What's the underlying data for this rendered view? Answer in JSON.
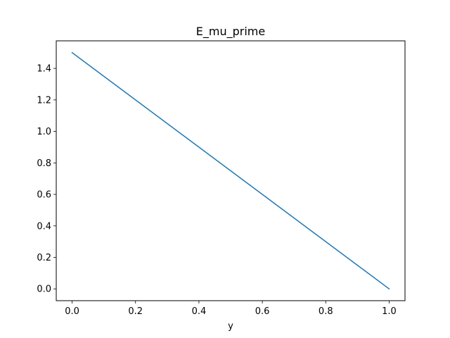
{
  "chart_data": {
    "type": "line",
    "title": "E_mu_prime",
    "xlabel": "y",
    "ylabel": "",
    "xlim": [
      -0.05,
      1.05
    ],
    "ylim": [
      -0.075,
      1.575
    ],
    "grid": false,
    "x_ticks": [
      0.0,
      0.2,
      0.4,
      0.6,
      0.8,
      1.0
    ],
    "x_tick_labels": [
      "0.0",
      "0.2",
      "0.4",
      "0.6",
      "0.8",
      "1.0"
    ],
    "y_ticks": [
      0.0,
      0.2,
      0.4,
      0.6,
      0.8,
      1.0,
      1.2,
      1.4
    ],
    "y_tick_labels": [
      "0.0",
      "0.2",
      "0.4",
      "0.6",
      "0.8",
      "1.0",
      "1.2",
      "1.4"
    ],
    "series": [
      {
        "name": "E_mu_prime",
        "color": "#1f77b4",
        "x": [
          0.0,
          1.0
        ],
        "y": [
          1.5,
          0.0
        ]
      }
    ]
  }
}
